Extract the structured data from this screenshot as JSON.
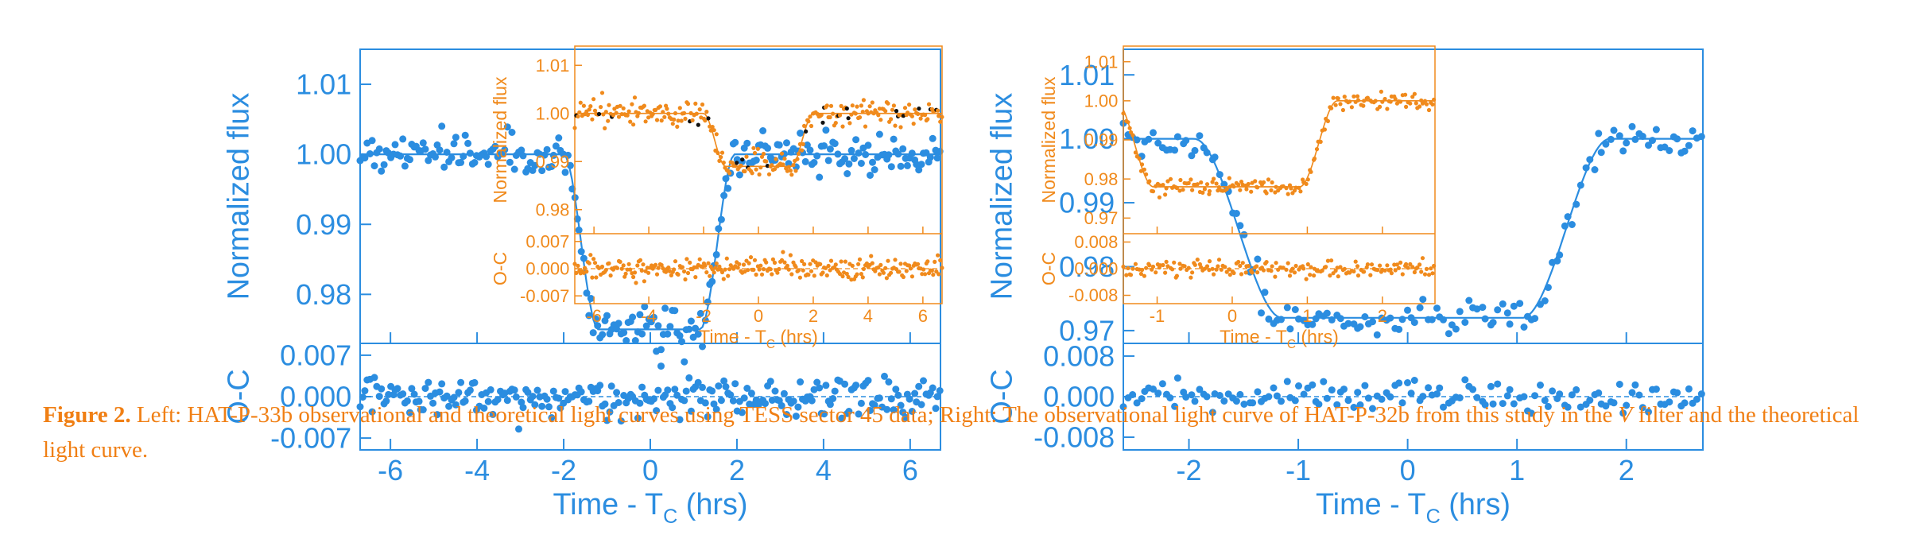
{
  "caption": {
    "label": "Figure 2.",
    "text1": " Left: HAT-P-33b observational and theoretical light curves using TESS sector 45 data; Right: The observational light curve of HAT-P-32b from this study in the ",
    "filter": "V",
    "text2": " filter and the theoretical light curve."
  },
  "colors": {
    "blue": "#2b8de0",
    "orange": "#f08a1c",
    "black": "#111111"
  },
  "chart_data": [
    {
      "type": "scatter",
      "panel": "left-main",
      "xlabel": "Time - T",
      "xlabel_sub": "C",
      "xlabel_unit": " (hrs)",
      "ylabel": "Normalized flux",
      "reslabel": "O-C",
      "xlim": [
        -6.7,
        6.7
      ],
      "ylim": [
        0.973,
        1.015
      ],
      "res_ylim": [
        -0.009,
        0.009
      ],
      "xticks": [
        "-6",
        "-4",
        "-2",
        "0",
        "2",
        "4",
        "6"
      ],
      "yticks": [
        "0.98",
        "0.99",
        "1.00",
        "1.01"
      ],
      "res_yticks": [
        "-0.007",
        "0.000",
        "0.007"
      ],
      "model": {
        "depth": 0.025,
        "t1": 1.6,
        "t2": 1.15,
        "scatter": 0.0022
      }
    },
    {
      "type": "scatter",
      "panel": "left-inset",
      "xlabel": "Time - T",
      "xlabel_sub": "C",
      "xlabel_unit": " (hrs)",
      "ylabel": "Normalized flux",
      "reslabel": "O-C",
      "xlim": [
        -6.7,
        6.7
      ],
      "ylim": [
        0.975,
        1.014
      ],
      "res_ylim": [
        -0.009,
        0.009
      ],
      "xticks": [
        "-6",
        "-4",
        "-2",
        "0",
        "2",
        "4",
        "6"
      ],
      "yticks": [
        "0.98",
        "0.99",
        "1.00",
        "1.01"
      ],
      "res_yticks": [
        "-0.007",
        "0.000",
        "0.007"
      ],
      "model": {
        "depth": 0.011,
        "t1": 1.6,
        "t2": 1.2,
        "scatter": 0.0018
      }
    },
    {
      "type": "scatter",
      "panel": "right-main",
      "xlabel": "Time - T",
      "xlabel_sub": "C",
      "xlabel_unit": " (hrs)",
      "ylabel": "Normalized flux",
      "reslabel": "O-C",
      "xlim": [
        -2.6,
        2.7
      ],
      "ylim": [
        0.968,
        1.014
      ],
      "res_ylim": [
        -0.0105,
        0.0105
      ],
      "xticks": [
        "-2",
        "-1",
        "0",
        "1",
        "2"
      ],
      "yticks": [
        "0.97",
        "0.98",
        "0.99",
        "1.00",
        "1.01"
      ],
      "res_yticks": [
        "-0.008",
        "0.000",
        "0.008"
      ],
      "model": {
        "depth": 0.028,
        "t1": 1.55,
        "t2": 1.05,
        "scatter": 0.0018
      }
    },
    {
      "type": "scatter",
      "panel": "right-inset",
      "xlabel": "Time - T",
      "xlabel_sub": "C",
      "xlabel_unit": " (hrs)",
      "ylabel": "Normalized flux",
      "reslabel": "O-C",
      "xlim": [
        -1.45,
        2.7
      ],
      "ylim": [
        0.966,
        1.014
      ],
      "res_ylim": [
        -0.0105,
        0.0105
      ],
      "xticks": [
        "-1",
        "0",
        "1",
        "2"
      ],
      "yticks": [
        "0.97",
        "0.98",
        "0.99",
        "1.00",
        "1.01"
      ],
      "res_yticks": [
        "-0.008",
        "0.000",
        "0.008"
      ],
      "model": {
        "depth": 0.022,
        "t1": -1.2,
        "t2": 1.25,
        "scatter": 0.0015
      }
    }
  ]
}
